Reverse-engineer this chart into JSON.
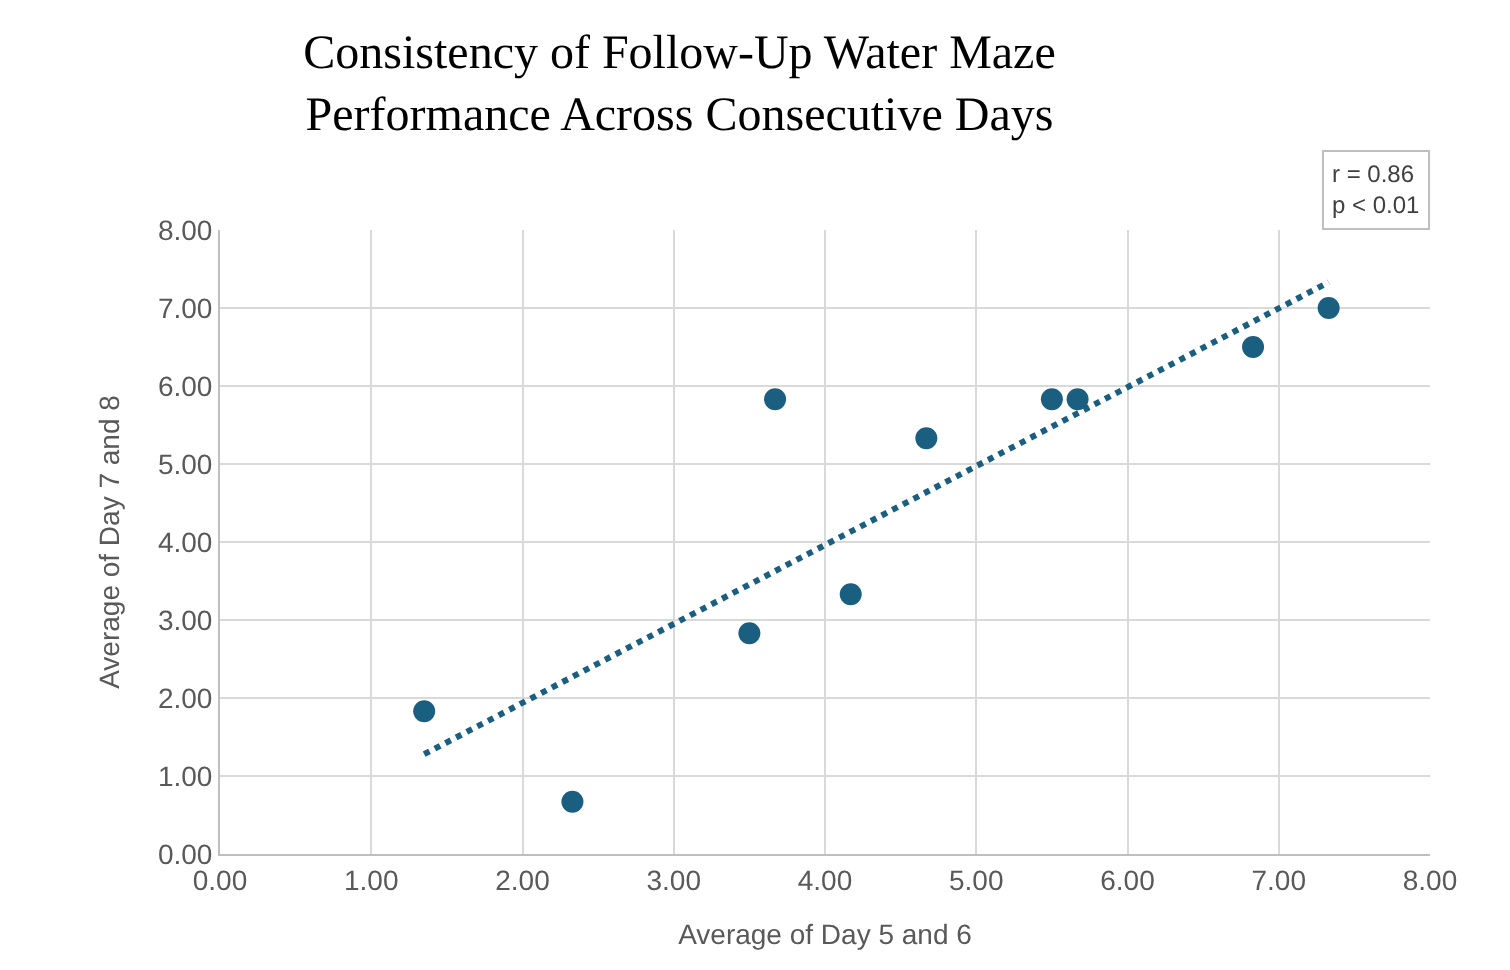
{
  "chart_data": {
    "type": "scatter",
    "title": "Consistency of Follow-Up Water Maze\nPerformance Across Consecutive Days",
    "xlabel": "Average of Day 5 and 6",
    "ylabel": "Average of Day 7 and 8",
    "series": [
      {
        "color": "#1a5e80",
        "marker": "circle",
        "x": [
          1.35,
          2.33,
          3.5,
          3.67,
          4.17,
          4.67,
          5.5,
          5.67,
          6.83,
          7.33
        ],
        "values": [
          1.83,
          0.67,
          2.83,
          5.83,
          3.33,
          5.33,
          5.83,
          5.83,
          6.5,
          7.0
        ]
      },
      {
        "type": "line",
        "color": "#1a5e80",
        "line_style": "dotted",
        "x": [
          1.35,
          7.33
        ],
        "values": [
          1.28,
          7.33
        ]
      }
    ],
    "annotations": [
      "r = 0.86\np < 0.01"
    ],
    "xlim": [
      0,
      8
    ],
    "ylim": [
      0,
      8
    ],
    "xticks": [
      {
        "value": 0,
        "label": "0.00"
      },
      {
        "value": 1,
        "label": "1.00"
      },
      {
        "value": 2,
        "label": "2.00"
      },
      {
        "value": 3,
        "label": "3.00"
      },
      {
        "value": 4,
        "label": "4.00"
      },
      {
        "value": 5,
        "label": "5.00"
      },
      {
        "value": 6,
        "label": "6.00"
      },
      {
        "value": 7,
        "label": "7.00"
      },
      {
        "value": 8,
        "label": "8.00"
      }
    ],
    "yticks": [
      {
        "value": 0,
        "label": "0.00"
      },
      {
        "value": 1,
        "label": "1.00"
      },
      {
        "value": 2,
        "label": "2.00"
      },
      {
        "value": 3,
        "label": "3.00"
      },
      {
        "value": 4,
        "label": "4.00"
      },
      {
        "value": 5,
        "label": "5.00"
      },
      {
        "value": 6,
        "label": "6.00"
      },
      {
        "value": 7,
        "label": "7.00"
      },
      {
        "value": 8,
        "label": "8.00"
      }
    ],
    "grid": true
  }
}
